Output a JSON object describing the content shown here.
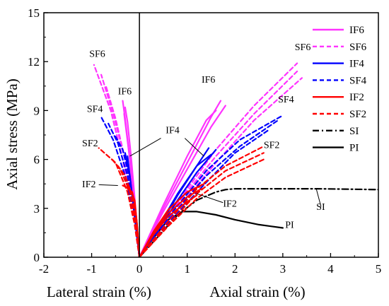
{
  "chart_data": {
    "type": "line",
    "xlabel_left": "Lateral strain (%)",
    "xlabel_right": "Axial strain (%)",
    "ylabel": "Axial stress (MPa)",
    "xlim": [
      -2,
      5
    ],
    "ylim": [
      0,
      15
    ],
    "x_ticks": [
      "-2",
      "-1",
      "0",
      "1",
      "2",
      "3",
      "4",
      "5"
    ],
    "y_ticks": [
      "0",
      "3",
      "6",
      "9",
      "12",
      "15"
    ],
    "legend": {
      "position": "top-right",
      "entries": [
        {
          "name": "IF6",
          "color": "#ff33ff",
          "dash": "solid"
        },
        {
          "name": "SF6",
          "color": "#ff33ff",
          "dash": "dashed"
        },
        {
          "name": "IF4",
          "color": "#0000ff",
          "dash": "solid"
        },
        {
          "name": "SF4",
          "color": "#0000ff",
          "dash": "dashed"
        },
        {
          "name": "IF2",
          "color": "#ff0000",
          "dash": "solid"
        },
        {
          "name": "SF2",
          "color": "#ff0000",
          "dash": "dashed"
        },
        {
          "name": "SI",
          "color": "#000000",
          "dash": "dashdot"
        },
        {
          "name": "PI",
          "color": "#000000",
          "dash": "solid"
        }
      ]
    },
    "series": [
      {
        "group": "PI",
        "color": "#000000",
        "dash": "solid",
        "x": [
          0,
          0.3,
          0.6,
          0.9,
          1.2,
          1.6,
          2.0,
          2.5,
          3.0
        ],
        "y": [
          0,
          1.2,
          2.3,
          2.8,
          2.8,
          2.6,
          2.3,
          2.0,
          1.8
        ]
      },
      {
        "group": "SI",
        "color": "#000000",
        "dash": "dashdot",
        "x": [
          0,
          0.4,
          0.8,
          1.2,
          1.6,
          1.8,
          2.0,
          2.5,
          3.0,
          3.7,
          4.3,
          5.0
        ],
        "y": [
          0,
          1.3,
          2.6,
          3.5,
          4.0,
          4.15,
          4.2,
          4.2,
          4.2,
          4.2,
          4.18,
          4.15
        ]
      },
      {
        "group": "IF6",
        "color": "#ff33ff",
        "dash": "solid",
        "x": [
          0,
          0.5,
          1.0,
          1.5,
          1.7
        ],
        "y": [
          0,
          3.0,
          5.8,
          8.6,
          9.6
        ]
      },
      {
        "group": "IF6",
        "color": "#ff33ff",
        "dash": "solid",
        "x": [
          0,
          0.5,
          1.0,
          1.5,
          1.8
        ],
        "y": [
          0,
          2.8,
          5.4,
          8.0,
          9.3
        ]
      },
      {
        "group": "IF6",
        "color": "#ff33ff",
        "dash": "solid",
        "x": [
          0,
          0.5,
          1.0,
          1.4,
          1.6
        ],
        "y": [
          0,
          3.2,
          6.2,
          8.4,
          9.0
        ]
      },
      {
        "group": "IF6",
        "color": "#ff33ff",
        "dash": "solid",
        "x": [
          0,
          -0.1,
          -0.2,
          -0.3,
          -0.35
        ],
        "y": [
          0,
          3.0,
          6.0,
          8.5,
          9.6
        ]
      },
      {
        "group": "IF6",
        "color": "#ff33ff",
        "dash": "solid",
        "x": [
          0,
          -0.08,
          -0.17,
          -0.25,
          -0.3
        ],
        "y": [
          0,
          3.0,
          6.0,
          8.3,
          9.2
        ]
      },
      {
        "group": "IF6",
        "color": "#ff33ff",
        "dash": "solid",
        "x": [
          0,
          -0.1,
          -0.2,
          -0.32
        ],
        "y": [
          0,
          3.0,
          6.0,
          8.8
        ]
      },
      {
        "group": "SF6",
        "color": "#ff33ff",
        "dash": "dashed",
        "x": [
          0,
          0.8,
          1.6,
          2.4,
          3.3
        ],
        "y": [
          0,
          3.4,
          6.6,
          9.3,
          11.9
        ]
      },
      {
        "group": "SF6",
        "color": "#ff33ff",
        "dash": "dashed",
        "x": [
          0,
          0.8,
          1.6,
          2.4,
          3.3
        ],
        "y": [
          0,
          3.3,
          6.2,
          8.8,
          11.4
        ]
      },
      {
        "group": "SF6",
        "color": "#ff33ff",
        "dash": "dashed",
        "x": [
          0,
          0.8,
          1.6,
          2.4,
          3.4
        ],
        "y": [
          0,
          3.0,
          5.8,
          8.4,
          11.0
        ]
      },
      {
        "group": "SF6",
        "color": "#ff33ff",
        "dash": "dashed",
        "x": [
          0,
          -0.15,
          -0.35,
          -0.6,
          -0.95
        ],
        "y": [
          0,
          3.0,
          6.0,
          9.0,
          11.8
        ]
      },
      {
        "group": "SF6",
        "color": "#ff33ff",
        "dash": "dashed",
        "x": [
          0,
          -0.12,
          -0.3,
          -0.55,
          -0.8
        ],
        "y": [
          0,
          3.0,
          6.0,
          8.8,
          11.2
        ]
      },
      {
        "group": "SF6",
        "color": "#ff33ff",
        "dash": "dashed",
        "x": [
          0,
          -0.1,
          -0.3,
          -0.5,
          -0.7
        ],
        "y": [
          0,
          3.0,
          6.0,
          8.5,
          10.5
        ]
      },
      {
        "group": "IF4",
        "color": "#0000ff",
        "dash": "solid",
        "x": [
          0,
          0.4,
          0.8,
          1.2,
          1.45
        ],
        "y": [
          0,
          1.8,
          3.8,
          5.6,
          6.7
        ]
      },
      {
        "group": "IF4",
        "color": "#0000ff",
        "dash": "solid",
        "x": [
          0,
          0.4,
          0.8,
          1.2,
          1.6
        ],
        "y": [
          0,
          1.7,
          3.5,
          5.2,
          6.6
        ]
      },
      {
        "group": "IF4",
        "color": "#0000ff",
        "dash": "solid",
        "x": [
          0,
          0.4,
          0.8,
          1.2,
          1.5
        ],
        "y": [
          0,
          1.9,
          3.9,
          5.6,
          6.3
        ]
      },
      {
        "group": "IF4",
        "color": "#0000ff",
        "dash": "solid",
        "x": [
          0,
          -0.1,
          -0.2,
          -0.3
        ],
        "y": [
          0,
          2.5,
          5.0,
          6.4
        ]
      },
      {
        "group": "IF4",
        "color": "#0000ff",
        "dash": "solid",
        "x": [
          0,
          -0.1,
          -0.2,
          -0.25
        ],
        "y": [
          0,
          2.5,
          5.0,
          6.2
        ]
      },
      {
        "group": "SF4",
        "color": "#0000ff",
        "dash": "dashed",
        "x": [
          0,
          0.7,
          1.4,
          2.1,
          3.0
        ],
        "y": [
          0,
          2.8,
          5.3,
          7.2,
          8.7
        ]
      },
      {
        "group": "SF4",
        "color": "#0000ff",
        "dash": "dashed",
        "x": [
          0,
          0.7,
          1.4,
          2.1,
          2.9
        ],
        "y": [
          0,
          2.6,
          5.0,
          6.8,
          8.4
        ]
      },
      {
        "group": "SF4",
        "color": "#0000ff",
        "dash": "dashed",
        "x": [
          0,
          0.7,
          1.4,
          2.0,
          2.7
        ],
        "y": [
          0,
          2.4,
          4.6,
          6.4,
          7.8
        ]
      },
      {
        "group": "SF4",
        "color": "#0000ff",
        "dash": "dashed",
        "x": [
          0,
          -0.1,
          -0.3,
          -0.55,
          -0.8
        ],
        "y": [
          0,
          2.5,
          5.0,
          7.2,
          8.6
        ]
      },
      {
        "group": "SF4",
        "color": "#0000ff",
        "dash": "dashed",
        "x": [
          0,
          -0.1,
          -0.25,
          -0.45,
          -0.65
        ],
        "y": [
          0,
          2.5,
          5.0,
          7.0,
          8.2
        ]
      },
      {
        "group": "SF4",
        "color": "#0000ff",
        "dash": "dashed",
        "x": [
          0,
          -0.1,
          -0.2,
          -0.35,
          -0.5
        ],
        "y": [
          0,
          2.5,
          4.8,
          6.6,
          7.4
        ]
      },
      {
        "group": "IF2",
        "color": "#ff0000",
        "dash": "solid",
        "x": [
          0,
          0.3,
          0.6,
          1.0,
          1.35
        ],
        "y": [
          0,
          1.6,
          2.9,
          4.0,
          4.5
        ]
      },
      {
        "group": "IF2",
        "color": "#ff0000",
        "dash": "solid",
        "x": [
          0,
          0.3,
          0.6,
          1.0,
          1.3
        ],
        "y": [
          0,
          1.5,
          2.7,
          3.7,
          4.2
        ]
      },
      {
        "group": "IF2",
        "color": "#ff0000",
        "dash": "solid",
        "x": [
          0,
          0.3,
          0.6,
          1.0,
          1.2
        ],
        "y": [
          0,
          1.4,
          2.5,
          3.4,
          3.8
        ]
      },
      {
        "group": "IF2",
        "color": "#ff0000",
        "dash": "solid",
        "x": [
          0,
          -0.05,
          -0.1,
          -0.2,
          -0.35
        ],
        "y": [
          0,
          2.0,
          3.5,
          4.2,
          4.4
        ]
      },
      {
        "group": "IF2",
        "color": "#ff0000",
        "dash": "solid",
        "x": [
          0,
          -0.05,
          -0.1,
          -0.15,
          -0.25
        ],
        "y": [
          0,
          2.0,
          3.4,
          4.0,
          4.2
        ]
      },
      {
        "group": "SF2",
        "color": "#ff0000",
        "dash": "dashed",
        "x": [
          0,
          0.6,
          1.2,
          1.8,
          2.6
        ],
        "y": [
          0,
          2.2,
          4.2,
          5.6,
          6.8
        ]
      },
      {
        "group": "SF2",
        "color": "#ff0000",
        "dash": "dashed",
        "x": [
          0,
          0.6,
          1.2,
          1.8,
          2.6
        ],
        "y": [
          0,
          2.0,
          3.9,
          5.3,
          6.4
        ]
      },
      {
        "group": "SF2",
        "color": "#ff0000",
        "dash": "dashed",
        "x": [
          0,
          0.6,
          1.2,
          1.8,
          2.6
        ],
        "y": [
          0,
          1.9,
          3.6,
          4.9,
          6.0
        ]
      },
      {
        "group": "SF2",
        "color": "#ff0000",
        "dash": "dashed",
        "x": [
          0,
          -0.1,
          -0.25,
          -0.5,
          -0.85
        ],
        "y": [
          0,
          2.0,
          4.0,
          5.8,
          6.7
        ]
      },
      {
        "group": "SF2",
        "color": "#ff0000",
        "dash": "dashed",
        "x": [
          0,
          -0.08,
          -0.2,
          -0.4,
          -0.6
        ],
        "y": [
          0,
          2.0,
          4.0,
          5.4,
          6.1
        ]
      },
      {
        "group": "SF2",
        "color": "#ff0000",
        "dash": "dashed",
        "x": [
          0,
          -0.06,
          -0.15,
          -0.3,
          -0.45
        ],
        "y": [
          0,
          2.0,
          3.8,
          5.0,
          5.6
        ]
      }
    ],
    "annotations": [
      {
        "text": "SF6",
        "x": -1.05,
        "y": 12.3
      },
      {
        "text": "IF6",
        "x": -0.45,
        "y": 10.0
      },
      {
        "text": "SF4",
        "x": -1.1,
        "y": 8.9
      },
      {
        "text": "SF2",
        "x": -1.2,
        "y": 6.8
      },
      {
        "text": "IF2",
        "x": -1.2,
        "y": 4.3
      },
      {
        "text": "IF4",
        "x": 0.55,
        "y": 7.6
      },
      {
        "text": "IF6",
        "x": 1.3,
        "y": 10.7
      },
      {
        "text": "SF6",
        "x": 3.25,
        "y": 12.7
      },
      {
        "text": "SF4",
        "x": 2.9,
        "y": 9.5
      },
      {
        "text": "SF2",
        "x": 2.6,
        "y": 6.7
      },
      {
        "text": "IF2",
        "x": 1.75,
        "y": 3.1
      },
      {
        "text": "SI",
        "x": 3.7,
        "y": 2.9
      },
      {
        "text": "PI",
        "x": 3.05,
        "y": 1.8
      }
    ]
  }
}
